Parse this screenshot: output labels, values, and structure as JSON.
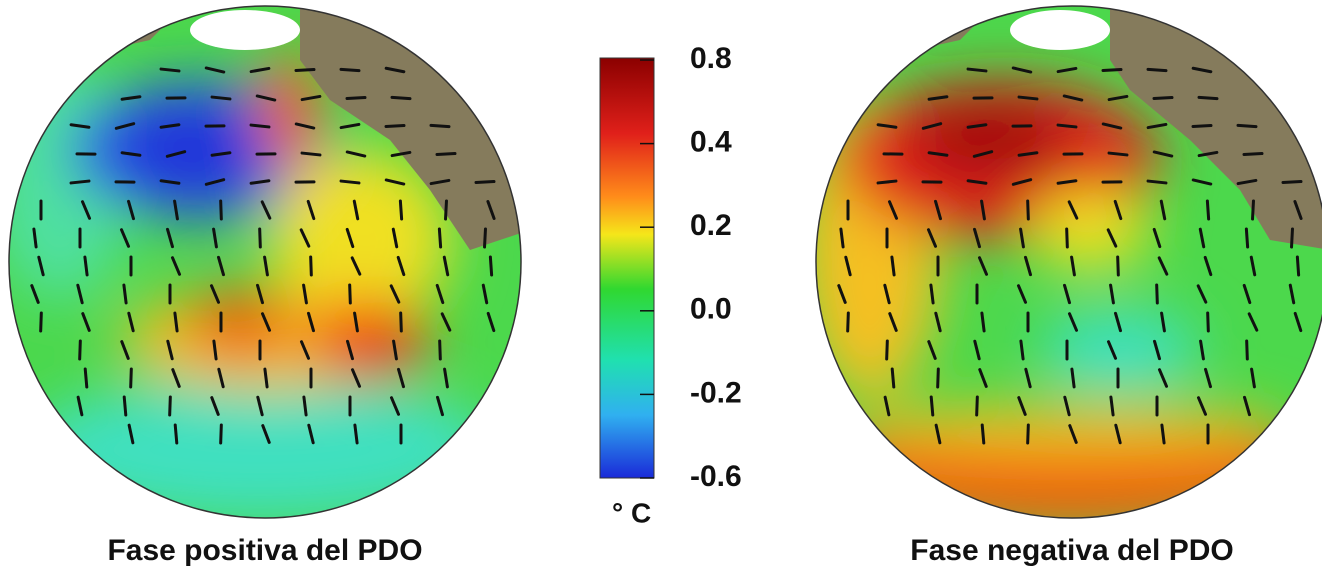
{
  "panels": [
    {
      "caption": "Fase positiva del PDO"
    },
    {
      "caption": "Fase negativa del PDO"
    }
  ],
  "colorbar": {
    "ticks": [
      0.8,
      0.4,
      0.2,
      {
        "value": 0,
        "label": "0.0"
      },
      -0.2,
      -0.6
    ],
    "unit": "° C"
  }
}
